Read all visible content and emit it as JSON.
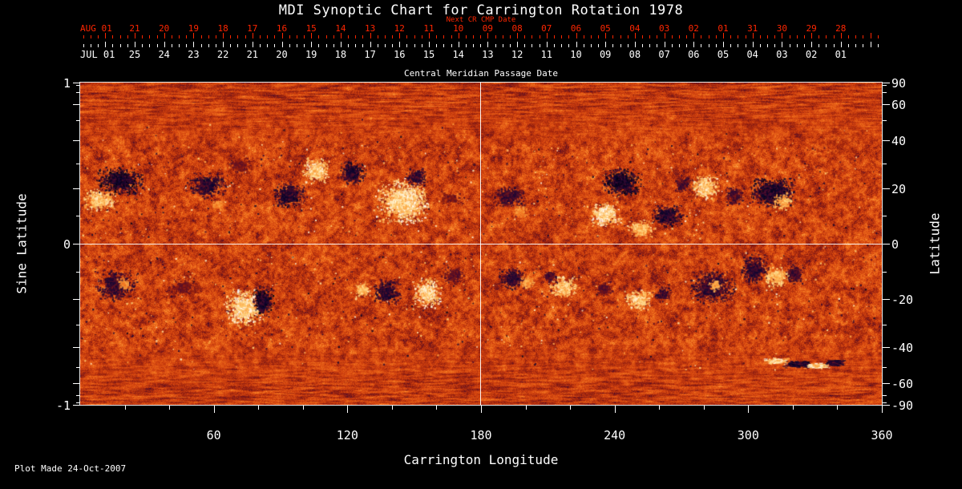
{
  "title": "MDI Synoptic Chart for Carrington Rotation 1978",
  "footer": "Plot Made 24-Oct-2007",
  "colors": {
    "background": "#000000",
    "foreground": "#ffffff",
    "next_cr_axis_red": "#ff2600",
    "field_midtone_orange": "#d04010"
  },
  "chart_data": {
    "type": "heatmap",
    "title": "MDI Synoptic Chart for Carrington Rotation 1978",
    "xlabel": "Carrington Longitude",
    "ylabel_left": "Sine Latitude",
    "ylabel_right": "Latitude",
    "xlim": [
      0,
      360
    ],
    "ylim_sine": [
      -1,
      1
    ],
    "x_ticks": [
      60,
      120,
      180,
      240,
      300,
      360
    ],
    "x_minor_step": 20,
    "sine_latitude_ticks": [
      "1",
      "0",
      "-1"
    ],
    "latitude_ticks": [
      90,
      60,
      40,
      20,
      0,
      -20,
      -40,
      -60,
      -90
    ],
    "latitude_minor_step": 10,
    "grid_crosshair": {
      "longitude": 180,
      "sine_latitude": 0
    },
    "top_axis_next_cr": {
      "title": "Next CR CMP Date",
      "month_label": "AUG 01",
      "day_labels": [
        "21",
        "20",
        "19",
        "18",
        "17",
        "16",
        "15",
        "14",
        "13",
        "12",
        "11",
        "10",
        "09",
        "08",
        "07",
        "06",
        "05",
        "04",
        "03",
        "02",
        "01",
        "31",
        "30",
        "29",
        "28"
      ]
    },
    "top_axis_cmp": {
      "title": "Central Meridian Passage Date",
      "month_label": "JUL 01",
      "day_labels": [
        "25",
        "24",
        "23",
        "22",
        "21",
        "20",
        "19",
        "18",
        "17",
        "16",
        "15",
        "14",
        "13",
        "12",
        "11",
        "10",
        "09",
        "08",
        "07",
        "06",
        "05",
        "04",
        "03",
        "02",
        "01"
      ]
    },
    "colormap": [
      [
        -1.0,
        2,
        2,
        18
      ],
      [
        -0.78,
        18,
        8,
        52
      ],
      [
        -0.55,
        72,
        12,
        48
      ],
      [
        -0.32,
        140,
        28,
        16
      ],
      [
        0.0,
        208,
        64,
        14
      ],
      [
        0.32,
        240,
        110,
        28
      ],
      [
        0.55,
        252,
        160,
        62
      ],
      [
        0.78,
        255,
        216,
        130
      ],
      [
        1.0,
        255,
        255,
        255
      ]
    ],
    "noise": {
      "seed": 20011978,
      "polar_streak_threshold": 0.6
    },
    "speckle": {
      "count": 1500,
      "bands": [
        [
          0.05,
          0.62
        ],
        [
          -0.62,
          -0.05
        ],
        [
          -0.78,
          0.78
        ]
      ]
    },
    "active_regions": [
      {
        "lon": 9,
        "lat": 0.27,
        "w": 16,
        "h": 0.15,
        "p": 1,
        "a": 0.9
      },
      {
        "lon": 18,
        "lat": 0.39,
        "w": 22,
        "h": 0.18,
        "p": -1,
        "a": 1
      },
      {
        "lon": 57,
        "lat": 0.36,
        "w": 18,
        "h": 0.16,
        "p": -1,
        "a": 0.85
      },
      {
        "lon": 62,
        "lat": 0.24,
        "w": 7,
        "h": 0.07,
        "p": 1,
        "a": 0.6
      },
      {
        "lon": 72,
        "lat": 0.48,
        "w": 12,
        "h": 0.12,
        "p": -1,
        "a": 0.5
      },
      {
        "lon": 94,
        "lat": 0.3,
        "w": 15,
        "h": 0.17,
        "p": -1,
        "a": 0.9
      },
      {
        "lon": 106,
        "lat": 0.45,
        "w": 13,
        "h": 0.17,
        "p": 1,
        "a": 0.95
      },
      {
        "lon": 122,
        "lat": 0.44,
        "w": 13,
        "h": 0.16,
        "p": -1,
        "a": 0.9
      },
      {
        "lon": 145,
        "lat": 0.26,
        "w": 25,
        "h": 0.3,
        "p": 1,
        "a": 1
      },
      {
        "lon": 151,
        "lat": 0.41,
        "w": 11,
        "h": 0.12,
        "p": -1,
        "a": 0.8
      },
      {
        "lon": 167,
        "lat": 0.28,
        "w": 12,
        "h": 0.1,
        "p": -1,
        "a": 0.5
      },
      {
        "lon": 193,
        "lat": 0.29,
        "w": 16,
        "h": 0.14,
        "p": -1,
        "a": 0.75
      },
      {
        "lon": 198,
        "lat": 0.2,
        "w": 8,
        "h": 0.08,
        "p": 1,
        "a": 0.6
      },
      {
        "lon": 243,
        "lat": 0.38,
        "w": 19,
        "h": 0.18,
        "p": -1,
        "a": 1
      },
      {
        "lon": 236,
        "lat": 0.18,
        "w": 15,
        "h": 0.16,
        "p": 1,
        "a": 1
      },
      {
        "lon": 252,
        "lat": 0.09,
        "w": 13,
        "h": 0.12,
        "p": 1,
        "a": 0.85
      },
      {
        "lon": 264,
        "lat": 0.17,
        "w": 15,
        "h": 0.15,
        "p": -1,
        "a": 0.9
      },
      {
        "lon": 281,
        "lat": 0.35,
        "w": 13,
        "h": 0.16,
        "p": 1,
        "a": 0.95
      },
      {
        "lon": 271,
        "lat": 0.37,
        "w": 9,
        "h": 0.11,
        "p": -1,
        "a": 0.7
      },
      {
        "lon": 294,
        "lat": 0.3,
        "w": 10,
        "h": 0.13,
        "p": -1,
        "a": 0.7
      },
      {
        "lon": 311,
        "lat": 0.32,
        "w": 22,
        "h": 0.19,
        "p": -1,
        "a": 0.95
      },
      {
        "lon": 316,
        "lat": 0.26,
        "w": 10,
        "h": 0.11,
        "p": 1,
        "a": 0.8
      },
      {
        "lon": 341,
        "lat": 0.62,
        "w": 26,
        "h": 0.26,
        "p": -1,
        "a": 0.55,
        "s": 1
      },
      {
        "lon": 215,
        "lat": 0.72,
        "w": 42,
        "h": 0.24,
        "p": -1,
        "a": 0.45,
        "s": 1
      },
      {
        "lon": 295,
        "lat": 0.7,
        "w": 38,
        "h": 0.22,
        "p": -1,
        "a": 0.45,
        "s": 1
      },
      {
        "lon": 80,
        "lat": 0.93,
        "w": 10,
        "h": 0.08,
        "p": -1,
        "a": 0.5,
        "s": 1
      },
      {
        "lon": 188,
        "lat": 0.95,
        "w": 12,
        "h": 0.07,
        "p": -1,
        "a": 0.5,
        "s": 1
      },
      {
        "lon": 16,
        "lat": -0.26,
        "w": 20,
        "h": 0.2,
        "p": -1,
        "a": 0.8
      },
      {
        "lon": 20,
        "lat": -0.25,
        "w": 7,
        "h": 0.08,
        "p": 1,
        "a": 0.6
      },
      {
        "lon": 47,
        "lat": -0.27,
        "w": 16,
        "h": 0.13,
        "p": -1,
        "a": 0.5
      },
      {
        "lon": 74,
        "lat": -0.4,
        "w": 18,
        "h": 0.24,
        "p": 1,
        "a": 1
      },
      {
        "lon": 82,
        "lat": -0.36,
        "w": 10,
        "h": 0.2,
        "p": -1,
        "a": 1
      },
      {
        "lon": 127,
        "lat": -0.29,
        "w": 8,
        "h": 0.11,
        "p": 1,
        "a": 0.85
      },
      {
        "lon": 138,
        "lat": -0.3,
        "w": 13,
        "h": 0.17,
        "p": -1,
        "a": 0.85
      },
      {
        "lon": 156,
        "lat": -0.31,
        "w": 13,
        "h": 0.2,
        "p": 1,
        "a": 1
      },
      {
        "lon": 168,
        "lat": -0.2,
        "w": 12,
        "h": 0.12,
        "p": -1,
        "a": 0.6
      },
      {
        "lon": 194,
        "lat": -0.22,
        "w": 13,
        "h": 0.15,
        "p": -1,
        "a": 0.8
      },
      {
        "lon": 201,
        "lat": -0.24,
        "w": 8,
        "h": 0.09,
        "p": 1,
        "a": 0.7
      },
      {
        "lon": 217,
        "lat": -0.27,
        "w": 14,
        "h": 0.14,
        "p": 1,
        "a": 0.9
      },
      {
        "lon": 211,
        "lat": -0.21,
        "w": 8,
        "h": 0.1,
        "p": -1,
        "a": 0.7
      },
      {
        "lon": 235,
        "lat": -0.28,
        "w": 9,
        "h": 0.11,
        "p": -1,
        "a": 0.6
      },
      {
        "lon": 251,
        "lat": -0.35,
        "w": 13,
        "h": 0.13,
        "p": 1,
        "a": 0.95
      },
      {
        "lon": 262,
        "lat": -0.31,
        "w": 8,
        "h": 0.12,
        "p": -1,
        "a": 0.75
      },
      {
        "lon": 284,
        "lat": -0.27,
        "w": 22,
        "h": 0.22,
        "p": -1,
        "a": 0.8
      },
      {
        "lon": 285,
        "lat": -0.26,
        "w": 7,
        "h": 0.08,
        "p": 1,
        "a": 0.7
      },
      {
        "lon": 303,
        "lat": -0.16,
        "w": 14,
        "h": 0.2,
        "p": -1,
        "a": 0.8
      },
      {
        "lon": 313,
        "lat": -0.21,
        "w": 12,
        "h": 0.14,
        "p": 1,
        "a": 0.85
      },
      {
        "lon": 321,
        "lat": -0.19,
        "w": 9,
        "h": 0.14,
        "p": -1,
        "a": 0.75
      },
      {
        "lon": 313,
        "lat": -0.73,
        "w": 11,
        "h": 0.09,
        "p": 1,
        "a": 1,
        "e": 1
      },
      {
        "lon": 322,
        "lat": -0.75,
        "w": 12,
        "h": 0.1,
        "p": -1,
        "a": 1,
        "e": 1
      },
      {
        "lon": 331,
        "lat": -0.76,
        "w": 11,
        "h": 0.08,
        "p": 1,
        "a": 1,
        "e": 1
      },
      {
        "lon": 339,
        "lat": -0.74,
        "w": 9,
        "h": 0.09,
        "p": -1,
        "a": 0.9,
        "e": 1
      },
      {
        "lon": 350,
        "lat": -0.53,
        "w": 18,
        "h": 0.12,
        "p": -1,
        "a": 0.45,
        "s": 1
      }
    ]
  }
}
